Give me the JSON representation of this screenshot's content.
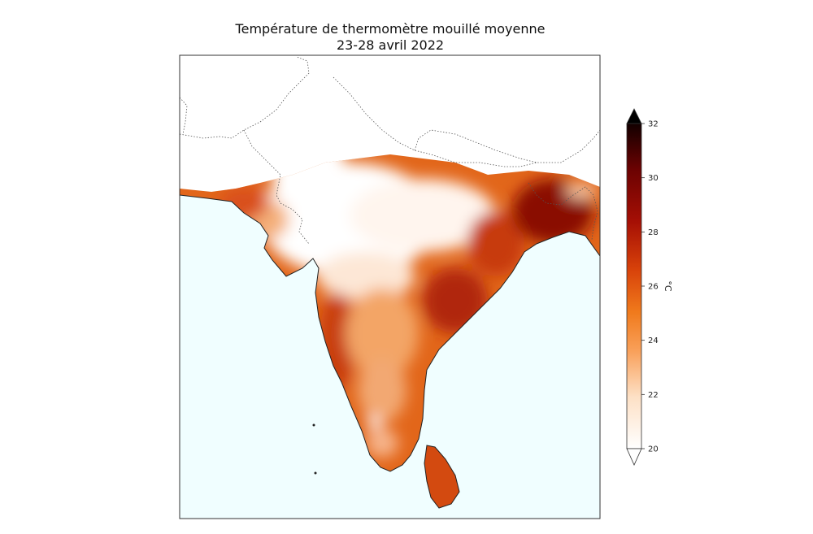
{
  "figure": {
    "title_line1": "Température de thermomètre mouillé moyenne",
    "title_line2": "23-28 avril 2022"
  },
  "colorbar": {
    "unit": "°C",
    "min": 20,
    "max": 32,
    "ticks": [
      "20",
      "22",
      "24",
      "26",
      "28",
      "30",
      "32"
    ],
    "extend": "both",
    "colormap": [
      "#ffffff",
      "#fde0c5",
      "#f9a05a",
      "#f07a1c",
      "#d8420a",
      "#a50f05",
      "#6b0202",
      "#000000"
    ]
  },
  "map": {
    "ocean_color": "#f0feff",
    "land_color_no_data": "#ffffff",
    "border_style": "dotted"
  }
}
